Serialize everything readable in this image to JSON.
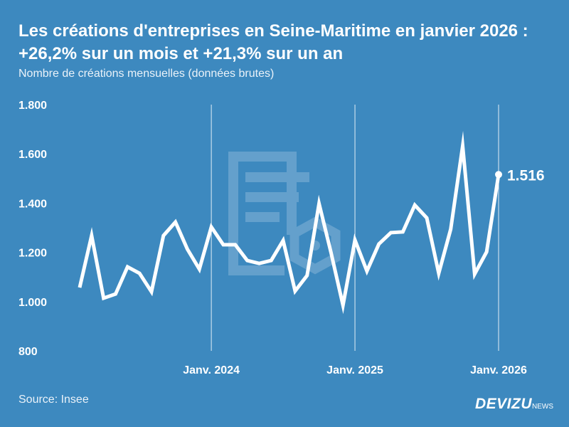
{
  "title": "Les créations d'entreprises en Seine-Maritime en janvier 2026 : +26,2% sur un mois et +21,3% sur un an",
  "subtitle": "Nombre de créations mensuelles (données brutes)",
  "source": "Source: Insee",
  "logo": {
    "main": "DEVIZU",
    "suffix": "NEWS"
  },
  "colors": {
    "background": "#3d89bf",
    "line": "#ffffff"
  },
  "chart_data": {
    "type": "line",
    "x": [
      "2023-02",
      "2023-03",
      "2023-04",
      "2023-05",
      "2023-06",
      "2023-07",
      "2023-08",
      "2023-09",
      "2023-10",
      "2023-11",
      "2023-12",
      "2024-01",
      "2024-02",
      "2024-03",
      "2024-04",
      "2024-05",
      "2024-06",
      "2024-07",
      "2024-08",
      "2024-09",
      "2024-10",
      "2024-11",
      "2024-12",
      "2025-01",
      "2025-02",
      "2025-03",
      "2025-04",
      "2025-05",
      "2025-06",
      "2025-07",
      "2025-08",
      "2025-09",
      "2025-10",
      "2025-11",
      "2025-12",
      "2026-01"
    ],
    "values": [
      1057,
      1268,
      1014,
      1031,
      1141,
      1115,
      1040,
      1268,
      1323,
      1213,
      1132,
      1303,
      1231,
      1231,
      1167,
      1155,
      1167,
      1248,
      1043,
      1106,
      1398,
      1199,
      985,
      1250,
      1124,
      1234,
      1280,
      1283,
      1392,
      1340,
      1115,
      1294,
      1632,
      1112,
      1202,
      1516
    ],
    "ylim": [
      800,
      1800
    ],
    "yticks": [
      {
        "v": 800,
        "label": "800"
      },
      {
        "v": 1000,
        "label": "1.000"
      },
      {
        "v": 1200,
        "label": "1.200"
      },
      {
        "v": 1400,
        "label": "1.400"
      },
      {
        "v": 1600,
        "label": "1.600"
      },
      {
        "v": 1800,
        "label": "1.800"
      }
    ],
    "xticks": [
      {
        "x": "2024-01",
        "label": "Janv. 2024"
      },
      {
        "x": "2025-01",
        "label": "Janv. 2025"
      },
      {
        "x": "2026-01",
        "label": "Janv. 2026"
      }
    ],
    "last_label": "1.516",
    "grid": "vertical lines at January"
  }
}
